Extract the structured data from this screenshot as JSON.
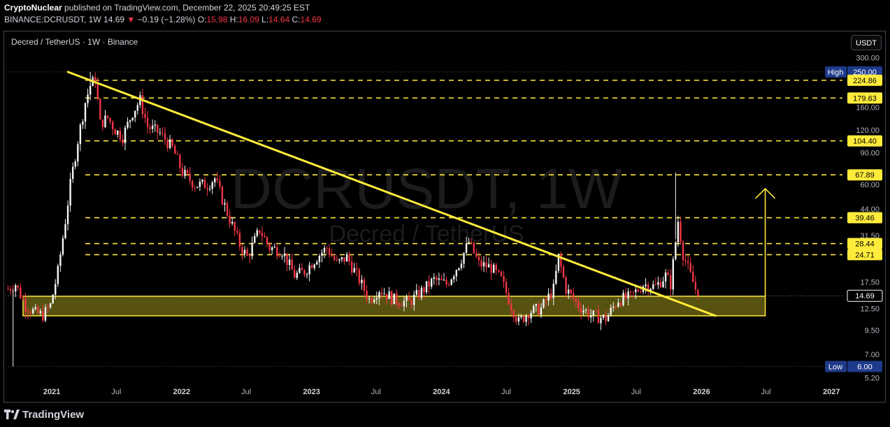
{
  "header": {
    "publisher": "CryptoNuclear",
    "published_text": "published on TradingView.com, December 22, 2025 20:49:25 EST",
    "symbol_line": "BINANCE:DCRUSDT, 1W",
    "last": "14.69",
    "change": "−0.19 (−1.28%)",
    "open_label": "O:",
    "open": "15.98",
    "high_label": "H:",
    "high": "16.09",
    "low_label": "L:",
    "low": "14.64",
    "close_label": "C:",
    "close": "14.69"
  },
  "legend": {
    "title": "Decred / TetherUS · 1W · Binance"
  },
  "currency_button": "USDT",
  "watermark": {
    "symbol": "DCRUSDT, 1W",
    "name": "Decred / TetherUS"
  },
  "footer": {
    "brand": "TradingView"
  },
  "chart_data": {
    "type": "candlestick",
    "scale": "log",
    "ylim": [
      5.0,
      320.0
    ],
    "xlim": [
      "2020-08-24",
      "2027-02-01"
    ],
    "x_ticks": [
      {
        "label": "2021",
        "date": "2021-01-01"
      },
      {
        "label": "Jul",
        "date": "2021-07-01"
      },
      {
        "label": "2022",
        "date": "2022-01-01"
      },
      {
        "label": "Jul",
        "date": "2022-07-01"
      },
      {
        "label": "2023",
        "date": "2023-01-01"
      },
      {
        "label": "Jul",
        "date": "2023-07-01"
      },
      {
        "label": "2024",
        "date": "2024-01-01"
      },
      {
        "label": "Jul",
        "date": "2024-07-01"
      },
      {
        "label": "2025",
        "date": "2025-01-01"
      },
      {
        "label": "Jul",
        "date": "2025-07-01"
      },
      {
        "label": "2026",
        "date": "2026-01-01"
      },
      {
        "label": "Jul",
        "date": "2026-07-01"
      },
      {
        "label": "2027",
        "date": "2027-01-01"
      }
    ],
    "y_ticks": [
      "300.00",
      "160.00",
      "120.00",
      "90.00",
      "60.00",
      "44.00",
      "31.50",
      "17.50",
      "12.50",
      "9.50",
      "7.00",
      "5.20"
    ],
    "horizontal_levels": [
      224.86,
      179.63,
      104.4,
      67.89,
      39.46,
      28.44,
      24.71
    ],
    "level_color": "#ffeb3b",
    "badges": [
      {
        "tag": "High",
        "value": "250.00",
        "kind": "dark"
      },
      {
        "value": "224.86",
        "kind": "yellow"
      },
      {
        "value": "179.63",
        "kind": "yellow"
      },
      {
        "value": "104.40",
        "kind": "yellow"
      },
      {
        "value": "67.89",
        "kind": "yellow"
      },
      {
        "value": "39.46",
        "kind": "yellow"
      },
      {
        "value": "28.44",
        "kind": "yellow"
      },
      {
        "value": "24.71",
        "kind": "yellow"
      },
      {
        "value": "14.69",
        "kind": "last"
      },
      {
        "tag": "Low",
        "value": "6.00",
        "kind": "dark"
      }
    ],
    "support_zone": {
      "start": "2020-10-12",
      "end": "2026-06-29",
      "low": 11.4,
      "high": 14.6,
      "color": "#ffeb3b"
    },
    "trendline": {
      "start": {
        "date": "2021-02-15",
        "price": 250
      },
      "end": {
        "date": "2026-02-09",
        "price": 11.4
      },
      "color": "#ffeb3b"
    },
    "projection_arrow": {
      "date": "2026-06-29",
      "from": 14.6,
      "to": 57
    },
    "candle_colors": {
      "up": "#f5f5f5",
      "down": "#f23645"
    },
    "price_path": [
      {
        "date": "2020-08-31",
        "price": 16
      },
      {
        "date": "2020-09-21",
        "price": 17
      },
      {
        "date": "2020-10-19",
        "price": 13
      },
      {
        "date": "2020-11-16",
        "price": 11.8
      },
      {
        "date": "2020-12-07",
        "price": 11.5
      },
      {
        "date": "2020-12-28",
        "price": 13
      },
      {
        "date": "2021-01-18",
        "price": 20
      },
      {
        "date": "2021-02-08",
        "price": 38
      },
      {
        "date": "2021-02-22",
        "price": 60
      },
      {
        "date": "2021-03-15",
        "price": 105
      },
      {
        "date": "2021-04-05",
        "price": 170
      },
      {
        "date": "2021-04-19",
        "price": 210
      },
      {
        "date": "2021-05-03",
        "price": 230
      },
      {
        "date": "2021-05-17",
        "price": 130
      },
      {
        "date": "2021-06-07",
        "price": 140
      },
      {
        "date": "2021-06-28",
        "price": 120
      },
      {
        "date": "2021-07-19",
        "price": 110
      },
      {
        "date": "2021-08-16",
        "price": 150
      },
      {
        "date": "2021-09-06",
        "price": 175
      },
      {
        "date": "2021-09-27",
        "price": 125
      },
      {
        "date": "2021-11-01",
        "price": 115
      },
      {
        "date": "2021-12-06",
        "price": 95
      },
      {
        "date": "2022-01-03",
        "price": 70
      },
      {
        "date": "2022-02-07",
        "price": 60
      },
      {
        "date": "2022-03-14",
        "price": 60
      },
      {
        "date": "2022-04-04",
        "price": 65
      },
      {
        "date": "2022-05-09",
        "price": 42
      },
      {
        "date": "2022-06-13",
        "price": 28
      },
      {
        "date": "2022-07-04",
        "price": 24
      },
      {
        "date": "2022-08-08",
        "price": 34
      },
      {
        "date": "2022-09-05",
        "price": 27
      },
      {
        "date": "2022-10-10",
        "price": 26
      },
      {
        "date": "2022-11-14",
        "price": 19
      },
      {
        "date": "2022-12-12",
        "price": 20
      },
      {
        "date": "2023-01-16",
        "price": 24
      },
      {
        "date": "2023-02-13",
        "price": 27
      },
      {
        "date": "2023-03-13",
        "price": 22
      },
      {
        "date": "2023-04-10",
        "price": 24
      },
      {
        "date": "2023-05-15",
        "price": 18
      },
      {
        "date": "2023-06-12",
        "price": 14
      },
      {
        "date": "2023-07-10",
        "price": 16
      },
      {
        "date": "2023-08-21",
        "price": 14
      },
      {
        "date": "2023-10-02",
        "price": 13.5
      },
      {
        "date": "2023-11-13",
        "price": 16
      },
      {
        "date": "2023-12-11",
        "price": 18
      },
      {
        "date": "2024-01-15",
        "price": 17
      },
      {
        "date": "2024-02-19",
        "price": 22
      },
      {
        "date": "2024-03-18",
        "price": 29
      },
      {
        "date": "2024-04-15",
        "price": 22
      },
      {
        "date": "2024-05-20",
        "price": 21
      },
      {
        "date": "2024-06-17",
        "price": 18
      },
      {
        "date": "2024-07-15",
        "price": 13
      },
      {
        "date": "2024-08-05",
        "price": 10.5
      },
      {
        "date": "2024-09-02",
        "price": 12
      },
      {
        "date": "2024-10-07",
        "price": 12.5
      },
      {
        "date": "2024-11-11",
        "price": 16
      },
      {
        "date": "2024-11-25",
        "price": 24
      },
      {
        "date": "2024-12-16",
        "price": 16
      },
      {
        "date": "2025-01-20",
        "price": 13
      },
      {
        "date": "2025-02-24",
        "price": 11.5
      },
      {
        "date": "2025-04-07",
        "price": 11
      },
      {
        "date": "2025-05-12",
        "price": 14
      },
      {
        "date": "2025-06-16",
        "price": 14.5
      },
      {
        "date": "2025-07-21",
        "price": 17
      },
      {
        "date": "2025-08-25",
        "price": 16.5
      },
      {
        "date": "2025-09-22",
        "price": 19
      },
      {
        "date": "2025-10-06",
        "price": 17
      },
      {
        "date": "2025-10-27",
        "price": 38
      },
      {
        "date": "2025-11-10",
        "price": 25
      },
      {
        "date": "2025-12-01",
        "price": 19
      },
      {
        "date": "2025-12-22",
        "price": 14.69
      }
    ]
  }
}
